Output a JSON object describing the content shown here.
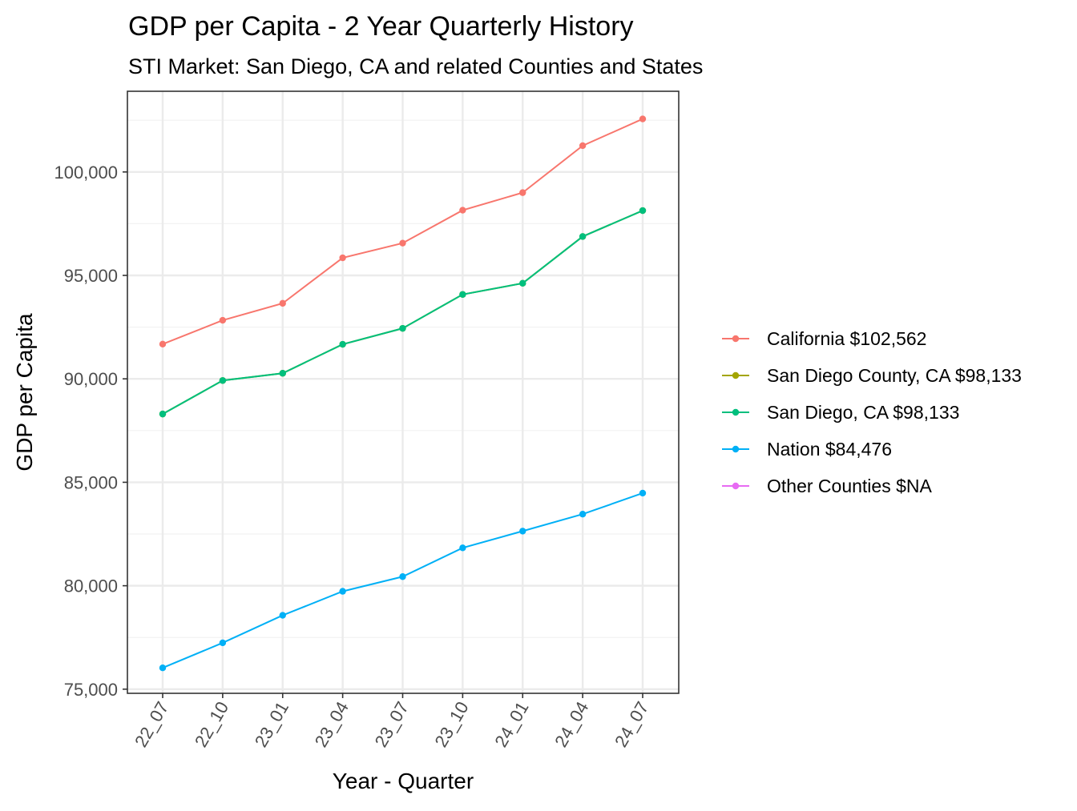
{
  "chart_data": {
    "type": "line",
    "title": "GDP per Capita - 2 Year Quarterly History",
    "subtitle": "STI Market: San Diego, CA and related Counties and States",
    "xlabel": "Year - Quarter",
    "ylabel": "GDP per Capita",
    "categories": [
      "22_07",
      "22_10",
      "23_01",
      "23_04",
      "23_07",
      "23_10",
      "24_01",
      "24_04",
      "24_07"
    ],
    "ylim": [
      74800,
      103900
    ],
    "yticks": [
      75000,
      80000,
      85000,
      90000,
      95000,
      100000
    ],
    "ytick_labels": [
      "75,000",
      "80,000",
      "85,000",
      "90,000",
      "95,000",
      "100,000"
    ],
    "grid": true,
    "legend_position": "right",
    "series": [
      {
        "name": "California $102,562",
        "color": "#F8766D",
        "values": [
          91680,
          92830,
          93650,
          95850,
          96560,
          98150,
          99000,
          101270,
          102562
        ]
      },
      {
        "name": "San Diego County, CA $98,133",
        "color": "#A3A500",
        "values": [
          88300,
          89920,
          90270,
          91670,
          92440,
          94080,
          94620,
          96880,
          98133
        ]
      },
      {
        "name": "San Diego, CA $98,133",
        "color": "#00BF7D",
        "values": [
          88300,
          89920,
          90270,
          91670,
          92440,
          94080,
          94620,
          96880,
          98133
        ]
      },
      {
        "name": "Nation $84,476",
        "color": "#00B0F6",
        "values": [
          76030,
          77240,
          78570,
          79730,
          80440,
          81830,
          82640,
          83460,
          84476
        ]
      },
      {
        "name": "Other Counties $NA",
        "color": "#E76BF3",
        "values": [
          null,
          null,
          null,
          null,
          null,
          null,
          null,
          null,
          null
        ]
      }
    ]
  }
}
